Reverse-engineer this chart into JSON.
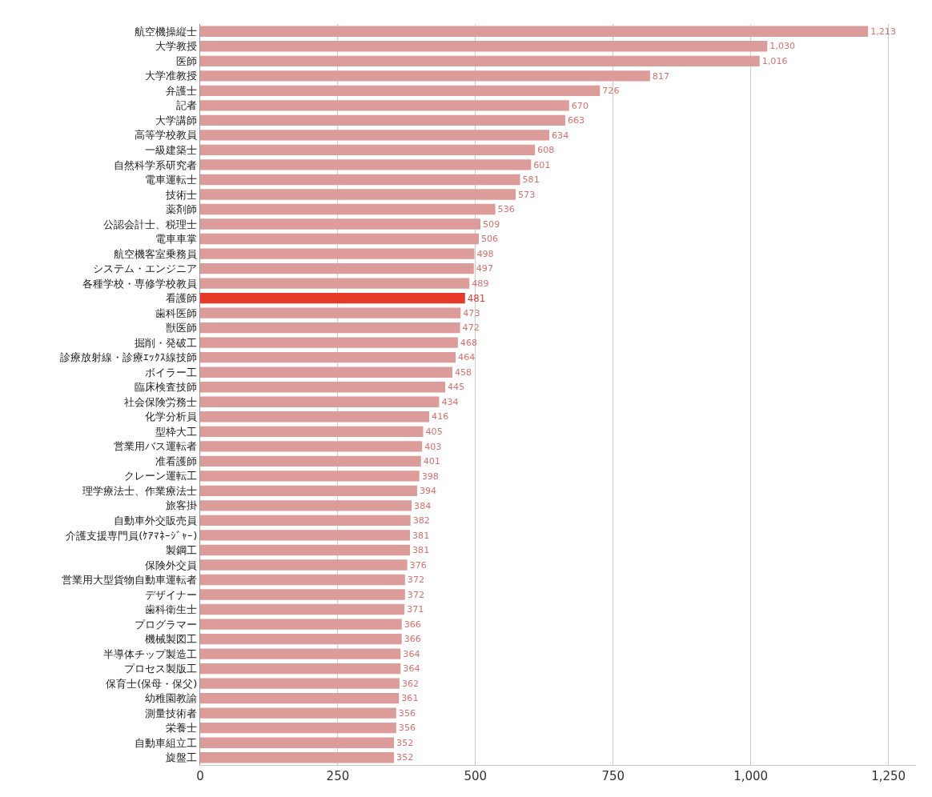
{
  "chart_data": {
    "type": "bar",
    "orientation": "horizontal",
    "categories": [
      "航空機操縦士",
      "大学教授",
      "医師",
      "大学准教授",
      "弁護士",
      "記者",
      "大学講師",
      "高等学校教員",
      "一級建築士",
      "自然科学系研究者",
      "電車運転士",
      "技術士",
      "薬剤師",
      "公認会計士、税理士",
      "電車車掌",
      "航空機客室乗務員",
      "システム・エンジニア",
      "各種学校・専修学校教員",
      "看護師",
      "歯科医師",
      "獣医師",
      "掘削・発破工",
      "診療放射線・診療ｴｯｸｽ線技師",
      "ボイラー工",
      "臨床検査技師",
      "社会保険労務士",
      "化学分析員",
      "型枠大工",
      "営業用バス運転者",
      "准看護師",
      "クレーン運転工",
      "理学療法士、作業療法士",
      "旅客掛",
      "自動車外交販売員",
      "介護支援専門員(ｹｱﾏﾈｰｼﾞｬｰ)",
      "製鋼工",
      "保険外交員",
      "営業用大型貨物自動車運転者",
      "デザイナー",
      "歯科衛生士",
      "プログラマー",
      "機械製図工",
      "半導体チップ製造工",
      "プロセス製版工",
      "保育士(保母・保父)",
      "幼稚園教諭",
      "測量技術者",
      "栄養士",
      "自動車組立工",
      "旋盤工"
    ],
    "values": [
      1213,
      1030,
      1016,
      817,
      726,
      670,
      663,
      634,
      608,
      601,
      581,
      573,
      536,
      509,
      506,
      498,
      497,
      489,
      481,
      473,
      472,
      468,
      464,
      458,
      445,
      434,
      416,
      405,
      403,
      401,
      398,
      394,
      384,
      382,
      381,
      381,
      376,
      372,
      372,
      371,
      366,
      366,
      364,
      364,
      362,
      361,
      356,
      356,
      352,
      352
    ],
    "value_labels": [
      "1,213",
      "1,030",
      "1,016",
      "817",
      "726",
      "670",
      "663",
      "634",
      "608",
      "601",
      "581",
      "573",
      "536",
      "509",
      "506",
      "498",
      "497",
      "489",
      "481",
      "473",
      "472",
      "468",
      "464",
      "458",
      "445",
      "434",
      "416",
      "405",
      "403",
      "401",
      "398",
      "394",
      "384",
      "382",
      "381",
      "381",
      "376",
      "372",
      "372",
      "371",
      "366",
      "366",
      "364",
      "364",
      "362",
      "361",
      "356",
      "356",
      "352",
      "352"
    ],
    "colors": [
      "#dc9c9a",
      "#dc9c9a",
      "#dc9c9a",
      "#dc9c9a",
      "#dc9c9a",
      "#dc9c9a",
      "#dc9c9a",
      "#dc9c9a",
      "#dc9c9a",
      "#dc9c9a",
      "#dc9c9a",
      "#dc9c9a",
      "#dc9c9a",
      "#dc9c9a",
      "#dc9c9a",
      "#dc9c9a",
      "#dc9c9a",
      "#dc9c9a",
      "#e8382a",
      "#dc9c9a",
      "#dc9c9a",
      "#dc9c9a",
      "#dc9c9a",
      "#dc9c9a",
      "#dc9c9a",
      "#dc9c9a",
      "#dc9c9a",
      "#dc9c9a",
      "#dc9c9a",
      "#dc9c9a",
      "#dc9c9a",
      "#dc9c9a",
      "#dc9c9a",
      "#dc9c9a",
      "#dc9c9a",
      "#dc9c9a",
      "#dc9c9a",
      "#dc9c9a",
      "#dc9c9a",
      "#dc9c9a",
      "#dc9c9a",
      "#dc9c9a",
      "#dc9c9a",
      "#dc9c9a",
      "#dc9c9a",
      "#dc9c9a",
      "#dc9c9a",
      "#dc9c9a",
      "#dc9c9a",
      "#dc9c9a"
    ],
    "xlim": [
      0,
      1300
    ],
    "xticks": [
      0,
      250,
      500,
      750,
      {
        "value": 1000,
        "label": "1,000"
      },
      {
        "value": 1250,
        "label": "1,250"
      }
    ],
    "grid": "x"
  }
}
